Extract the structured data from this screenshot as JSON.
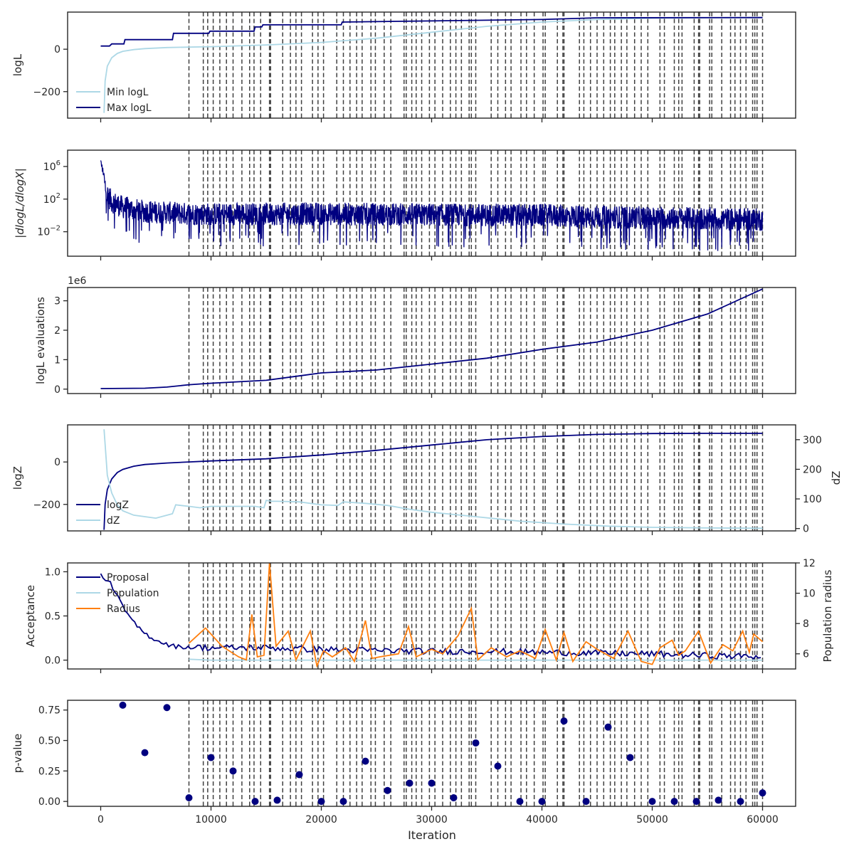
{
  "figure": {
    "shared_xlabel": "Iteration",
    "x_ticks": [
      0,
      10000,
      20000,
      30000,
      40000,
      50000,
      60000
    ],
    "xlim": [
      -3000,
      63000
    ],
    "colors": {
      "navy": "#000080",
      "lightblue": "#add8e6",
      "orange": "#ff7f0e",
      "vline": "#404040"
    },
    "restart_iterations": [
      8000,
      9300,
      9700,
      10200,
      10800,
      11400,
      12000,
      12800,
      13500,
      13900,
      14500,
      15300,
      15400,
      16500,
      17200,
      17700,
      18200,
      19200,
      19700,
      20200,
      21400,
      22000,
      22600,
      23200,
      23700,
      24500,
      24900,
      25700,
      26300,
      27500,
      27700,
      28200,
      28600,
      29100,
      29800,
      30300,
      31000,
      31700,
      32200,
      32700,
      33400,
      33600,
      34000,
      35400,
      36000,
      36700,
      37200,
      38100,
      38600,
      39300,
      40100,
      40300,
      41400,
      41900,
      42000,
      43400,
      43800,
      44400,
      45000,
      45600,
      46200,
      46600,
      47200,
      47700,
      48400,
      49000,
      49600,
      50700,
      51100,
      52000,
      52400,
      52700,
      53800,
      54200,
      54300,
      55200,
      55400,
      56300,
      57100,
      57500,
      58000,
      58500,
      59100,
      59300,
      59500,
      60000
    ]
  },
  "chart_data": [
    {
      "type": "line",
      "panel": "logL",
      "ylabel": "logL",
      "ylim": [
        -325,
        175
      ],
      "yticks": [
        0,
        -200
      ],
      "legend": "lower-left",
      "series": [
        {
          "name": "Min logL",
          "color": "#add8e6",
          "x": [
            300,
            400,
            600,
            1000,
            1500,
            2000,
            3000,
            4000,
            6000,
            8000,
            10000,
            15000,
            20000,
            25000,
            30000,
            35000,
            40000,
            45000,
            50000,
            55000,
            60000
          ],
          "values": [
            -300,
            -150,
            -80,
            -40,
            -20,
            -10,
            -2,
            3,
            8,
            10,
            12,
            20,
            32,
            52,
            80,
            108,
            128,
            140,
            146,
            148,
            149
          ]
        },
        {
          "name": "Max logL",
          "color": "#000080",
          "x": [
            0,
            800,
            1000,
            2100,
            2200,
            6500,
            6600,
            9800,
            9900,
            13900,
            14000,
            14600,
            14700,
            21800,
            21900,
            40000,
            45000,
            60000
          ],
          "values": [
            15,
            15,
            25,
            25,
            45,
            45,
            75,
            75,
            85,
            85,
            105,
            105,
            115,
            115,
            128,
            140,
            148,
            149
          ]
        }
      ]
    },
    {
      "type": "line",
      "panel": "dlogL",
      "ylabel": "|dlogL/dlogX|",
      "scale": "log",
      "ylim": [
        1e-05,
        100000000.0
      ],
      "yticks": [
        "10^6",
        "10^2",
        "10^-2"
      ],
      "series": [
        {
          "name": "",
          "color": "#000080",
          "x": [
            0,
            300,
            500,
            1000,
            2000,
            4000,
            8000,
            20000,
            40000,
            50000,
            60000
          ],
          "values": [
            3000000,
            50000,
            500,
            50,
            10,
            3,
            1.5,
            1.5,
            1,
            0.5,
            0.3
          ]
        }
      ]
    },
    {
      "type": "line",
      "panel": "evaluations",
      "ylabel": "logL evaluations",
      "offset_label": "1e6",
      "ylim": [
        -0.15,
        3.45
      ],
      "yticks": [
        0,
        1,
        2,
        3
      ],
      "series": [
        {
          "name": "",
          "color": "#000080",
          "x": [
            0,
            4000,
            6000,
            8000,
            10000,
            15000,
            18000,
            20000,
            25000,
            30000,
            35000,
            40000,
            45000,
            50000,
            55000,
            60000
          ],
          "values": [
            0.02,
            0.03,
            0.07,
            0.15,
            0.2,
            0.3,
            0.45,
            0.55,
            0.65,
            0.85,
            1.05,
            1.35,
            1.6,
            2.0,
            2.55,
            3.4
          ]
        }
      ]
    },
    {
      "type": "line",
      "panel": "logZ",
      "ylabel": "logZ",
      "ylabel_right": "dZ",
      "ylim": [
        -325,
        175
      ],
      "ylim_right": [
        -8,
        350
      ],
      "yticks": [
        0,
        -200
      ],
      "yticks_right": [
        0,
        100,
        200,
        300
      ],
      "legend": "lower-left",
      "series": [
        {
          "name": "logZ",
          "color": "#000080",
          "axis": "left",
          "x": [
            300,
            400,
            600,
            1000,
            1500,
            2000,
            3000,
            4000,
            6000,
            8000,
            10000,
            15000,
            20000,
            25000,
            30000,
            35000,
            40000,
            45000,
            50000,
            55000,
            60000
          ],
          "values": [
            -320,
            -200,
            -130,
            -80,
            -50,
            -35,
            -20,
            -12,
            -5,
            0,
            5,
            15,
            33,
            55,
            80,
            105,
            120,
            130,
            134,
            135,
            135
          ]
        },
        {
          "name": "dZ",
          "color": "#add8e6",
          "axis": "right",
          "x": [
            300,
            600,
            1000,
            1500,
            2000,
            3000,
            4000,
            5000,
            6500,
            6800,
            8000,
            9000,
            10000,
            12000,
            14000,
            14800,
            15000,
            15500,
            16000,
            18000,
            20000,
            21500,
            22000,
            24000,
            26000,
            28000,
            30000,
            34000,
            38000,
            42000,
            46000,
            50000,
            55000,
            60000
          ],
          "values": [
            335,
            180,
            120,
            80,
            60,
            45,
            40,
            35,
            50,
            80,
            75,
            70,
            75,
            75,
            75,
            70,
            95,
            92,
            92,
            90,
            80,
            78,
            90,
            85,
            78,
            65,
            55,
            40,
            25,
            15,
            8,
            4,
            2,
            1
          ]
        }
      ]
    },
    {
      "type": "line",
      "panel": "acceptance",
      "ylabel": "Acceptance",
      "ylabel_right": "Population radius",
      "ylim": [
        -0.1,
        1.1
      ],
      "ylim_right": [
        5.0,
        12.0
      ],
      "yticks": [
        0.0,
        0.5,
        1.0
      ],
      "yticks_right": [
        6,
        8,
        10,
        12
      ],
      "legend": "upper-left",
      "series": [
        {
          "name": "Proposal",
          "color": "#000080",
          "axis": "left",
          "x": [
            0,
            1000,
            2000,
            3000,
            4000,
            5000,
            6000,
            7000,
            8000,
            10000,
            15000,
            20000,
            25000,
            30000,
            35000,
            40000,
            45000,
            50000,
            55000,
            60000
          ],
          "values": [
            0.97,
            0.85,
            0.6,
            0.42,
            0.3,
            0.23,
            0.18,
            0.15,
            0.15,
            0.14,
            0.14,
            0.12,
            0.11,
            0.1,
            0.1,
            0.09,
            0.08,
            0.07,
            0.05,
            0.04
          ]
        },
        {
          "name": "Population",
          "color": "#add8e6",
          "axis": "left",
          "x": [
            8000,
            10000,
            20000,
            30000,
            40000,
            50000,
            60000
          ],
          "values": [
            0.01,
            0.0,
            0.0,
            0.0,
            0.0,
            0.0,
            0.0
          ]
        },
        {
          "name": "Radius",
          "color": "#ff7f0e",
          "axis": "right",
          "x": [
            8000,
            9500,
            11000,
            12500,
            13200,
            13700,
            14200,
            14800,
            15300,
            15900,
            17000,
            17700,
            19000,
            19600,
            20200,
            21000,
            22200,
            23000,
            24000,
            24600,
            25300,
            27000,
            27900,
            28600,
            30000,
            31000,
            32400,
            33600,
            34200,
            35400,
            36800,
            38000,
            39400,
            40300,
            41300,
            42000,
            42800,
            44000,
            45000,
            46500,
            47800,
            49000,
            50000,
            50700,
            51800,
            52400,
            53000,
            54200,
            55300,
            56400,
            57300,
            58200,
            58800,
            59200,
            60000
          ],
          "values": [
            6.7,
            7.7,
            6.5,
            5.8,
            5.6,
            8.6,
            5.8,
            5.9,
            12.0,
            6.5,
            7.5,
            5.6,
            7.5,
            5.2,
            6.2,
            5.8,
            6.4,
            5.5,
            8.2,
            5.7,
            5.8,
            6.0,
            7.8,
            5.8,
            6.3,
            6.0,
            7.2,
            9.0,
            5.6,
            6.4,
            5.8,
            6.2,
            5.7,
            7.6,
            5.6,
            7.4,
            5.5,
            6.8,
            6.3,
            5.7,
            7.5,
            5.5,
            5.3,
            6.4,
            6.9,
            5.9,
            6.2,
            7.5,
            5.4,
            6.6,
            6.2,
            7.5,
            6.1,
            7.3,
            6.8
          ]
        }
      ]
    },
    {
      "type": "scatter",
      "panel": "pvalue",
      "ylabel": "p-value",
      "xlabel": "Iteration",
      "ylim": [
        -0.04,
        0.83
      ],
      "yticks": [
        0.0,
        0.25,
        0.5,
        0.75
      ],
      "series": [
        {
          "name": "",
          "color": "#000080",
          "x": [
            2000,
            4000,
            6000,
            8000,
            10000,
            12000,
            14000,
            16000,
            18000,
            20000,
            22000,
            24000,
            26000,
            28000,
            30000,
            32000,
            34000,
            36000,
            38000,
            40000,
            42000,
            44000,
            46000,
            48000,
            50000,
            52000,
            54000,
            56000,
            58000,
            60000
          ],
          "values": [
            0.79,
            0.4,
            0.77,
            0.03,
            0.36,
            0.25,
            0.0,
            0.01,
            0.22,
            0.0,
            0.0,
            0.33,
            0.09,
            0.15,
            0.15,
            0.03,
            0.48,
            0.29,
            0.0,
            0.0,
            0.66,
            0.0,
            0.61,
            0.36,
            0.0,
            0.0,
            0.0,
            0.01,
            0.0,
            0.07
          ]
        }
      ]
    }
  ]
}
